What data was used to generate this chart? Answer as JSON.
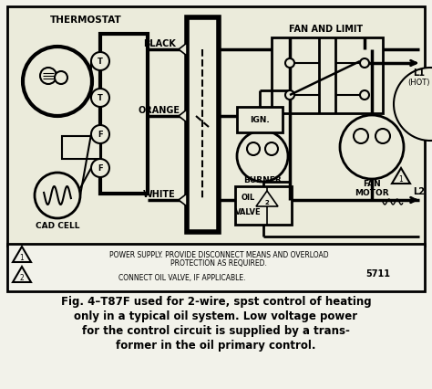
{
  "caption_line1": "Fig. 4–T87F used for 2-wire, spst control of heating",
  "caption_line2": "only in a typical oil system. Low voltage power",
  "caption_line3": "for the control circuit is supplied by a trans-",
  "caption_line4": "former in the oil primary control.",
  "note1": "POWER SUPPLY. PROVIDE DISCONNECT MEANS AND OVERLOAD",
  "note1b": "PROTECTION AS REQUIRED.",
  "note2": "CONNECT OIL VALVE, IF APPLICABLE.",
  "part_num": "5711",
  "label_thermostat": "THERMOSTAT",
  "label_fan_limit": "FAN AND LIMIT",
  "label_black": "BLACK",
  "label_orange": "ORANGE",
  "label_white": "WHITE",
  "label_l1": "L1",
  "label_hot": "(HOT)",
  "label_l2": "L2",
  "label_ign": "IGN.",
  "label_burner": "BURNER",
  "label_oil": "OIL",
  "label_valve": "VALVE",
  "label_fan_motor1": "FAN",
  "label_fan_motor2": "MOTOR",
  "label_cad_cell": "CAD CELL",
  "label_t": "T",
  "label_f": "F",
  "label_2": "2",
  "bg_color": "#f2f2ea",
  "fg_color": "#000000",
  "diagram_bg": "#ebebdb",
  "lw_thin": 1.2,
  "lw_med": 2.0,
  "lw_thick": 3.0
}
